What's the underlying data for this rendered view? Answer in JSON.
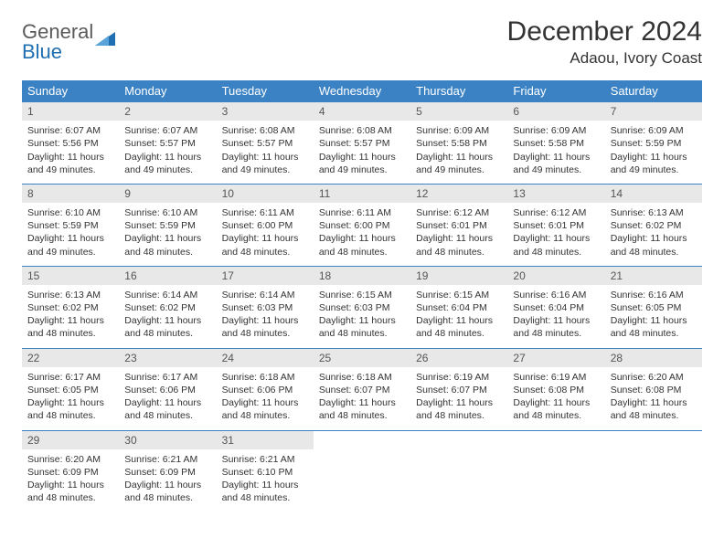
{
  "logo": {
    "text1": "General",
    "text2": "Blue"
  },
  "title": "December 2024",
  "location": "Adaou, Ivory Coast",
  "colors": {
    "header_bg": "#3b82c4",
    "header_fg": "#ffffff",
    "daynum_bg": "#e8e8e8",
    "cell_border": "#3b82c4",
    "text": "#333333",
    "logo_gray": "#5a5a5a",
    "logo_blue": "#1f6fb2"
  },
  "typography": {
    "title_fontsize": 30,
    "location_fontsize": 17,
    "header_fontsize": 13,
    "cell_fontsize": 10.5,
    "daynum_fontsize": 12
  },
  "weekdays": [
    "Sunday",
    "Monday",
    "Tuesday",
    "Wednesday",
    "Thursday",
    "Friday",
    "Saturday"
  ],
  "weeks": [
    [
      {
        "num": "1",
        "sunrise": "6:07 AM",
        "sunset": "5:56 PM",
        "daylight": "11 hours and 49 minutes."
      },
      {
        "num": "2",
        "sunrise": "6:07 AM",
        "sunset": "5:57 PM",
        "daylight": "11 hours and 49 minutes."
      },
      {
        "num": "3",
        "sunrise": "6:08 AM",
        "sunset": "5:57 PM",
        "daylight": "11 hours and 49 minutes."
      },
      {
        "num": "4",
        "sunrise": "6:08 AM",
        "sunset": "5:57 PM",
        "daylight": "11 hours and 49 minutes."
      },
      {
        "num": "5",
        "sunrise": "6:09 AM",
        "sunset": "5:58 PM",
        "daylight": "11 hours and 49 minutes."
      },
      {
        "num": "6",
        "sunrise": "6:09 AM",
        "sunset": "5:58 PM",
        "daylight": "11 hours and 49 minutes."
      },
      {
        "num": "7",
        "sunrise": "6:09 AM",
        "sunset": "5:59 PM",
        "daylight": "11 hours and 49 minutes."
      }
    ],
    [
      {
        "num": "8",
        "sunrise": "6:10 AM",
        "sunset": "5:59 PM",
        "daylight": "11 hours and 49 minutes."
      },
      {
        "num": "9",
        "sunrise": "6:10 AM",
        "sunset": "5:59 PM",
        "daylight": "11 hours and 48 minutes."
      },
      {
        "num": "10",
        "sunrise": "6:11 AM",
        "sunset": "6:00 PM",
        "daylight": "11 hours and 48 minutes."
      },
      {
        "num": "11",
        "sunrise": "6:11 AM",
        "sunset": "6:00 PM",
        "daylight": "11 hours and 48 minutes."
      },
      {
        "num": "12",
        "sunrise": "6:12 AM",
        "sunset": "6:01 PM",
        "daylight": "11 hours and 48 minutes."
      },
      {
        "num": "13",
        "sunrise": "6:12 AM",
        "sunset": "6:01 PM",
        "daylight": "11 hours and 48 minutes."
      },
      {
        "num": "14",
        "sunrise": "6:13 AM",
        "sunset": "6:02 PM",
        "daylight": "11 hours and 48 minutes."
      }
    ],
    [
      {
        "num": "15",
        "sunrise": "6:13 AM",
        "sunset": "6:02 PM",
        "daylight": "11 hours and 48 minutes."
      },
      {
        "num": "16",
        "sunrise": "6:14 AM",
        "sunset": "6:02 PM",
        "daylight": "11 hours and 48 minutes."
      },
      {
        "num": "17",
        "sunrise": "6:14 AM",
        "sunset": "6:03 PM",
        "daylight": "11 hours and 48 minutes."
      },
      {
        "num": "18",
        "sunrise": "6:15 AM",
        "sunset": "6:03 PM",
        "daylight": "11 hours and 48 minutes."
      },
      {
        "num": "19",
        "sunrise": "6:15 AM",
        "sunset": "6:04 PM",
        "daylight": "11 hours and 48 minutes."
      },
      {
        "num": "20",
        "sunrise": "6:16 AM",
        "sunset": "6:04 PM",
        "daylight": "11 hours and 48 minutes."
      },
      {
        "num": "21",
        "sunrise": "6:16 AM",
        "sunset": "6:05 PM",
        "daylight": "11 hours and 48 minutes."
      }
    ],
    [
      {
        "num": "22",
        "sunrise": "6:17 AM",
        "sunset": "6:05 PM",
        "daylight": "11 hours and 48 minutes."
      },
      {
        "num": "23",
        "sunrise": "6:17 AM",
        "sunset": "6:06 PM",
        "daylight": "11 hours and 48 minutes."
      },
      {
        "num": "24",
        "sunrise": "6:18 AM",
        "sunset": "6:06 PM",
        "daylight": "11 hours and 48 minutes."
      },
      {
        "num": "25",
        "sunrise": "6:18 AM",
        "sunset": "6:07 PM",
        "daylight": "11 hours and 48 minutes."
      },
      {
        "num": "26",
        "sunrise": "6:19 AM",
        "sunset": "6:07 PM",
        "daylight": "11 hours and 48 minutes."
      },
      {
        "num": "27",
        "sunrise": "6:19 AM",
        "sunset": "6:08 PM",
        "daylight": "11 hours and 48 minutes."
      },
      {
        "num": "28",
        "sunrise": "6:20 AM",
        "sunset": "6:08 PM",
        "daylight": "11 hours and 48 minutes."
      }
    ],
    [
      {
        "num": "29",
        "sunrise": "6:20 AM",
        "sunset": "6:09 PM",
        "daylight": "11 hours and 48 minutes."
      },
      {
        "num": "30",
        "sunrise": "6:21 AM",
        "sunset": "6:09 PM",
        "daylight": "11 hours and 48 minutes."
      },
      {
        "num": "31",
        "sunrise": "6:21 AM",
        "sunset": "6:10 PM",
        "daylight": "11 hours and 48 minutes."
      },
      null,
      null,
      null,
      null
    ]
  ],
  "labels": {
    "sunrise": "Sunrise: ",
    "sunset": "Sunset: ",
    "daylight": "Daylight: "
  }
}
